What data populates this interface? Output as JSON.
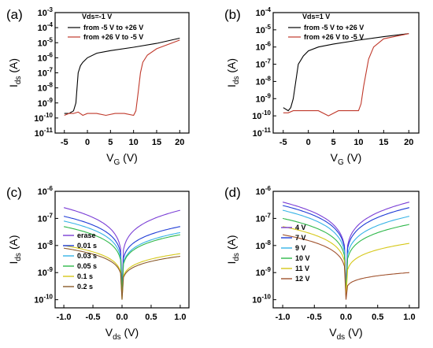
{
  "chart_data": [
    {
      "panel_label": "(a)",
      "type": "line",
      "x_ticks": [
        "-5",
        "0",
        "5",
        "10",
        "15",
        "20"
      ],
      "y_ticks": [
        "10",
        "10",
        "10",
        "10",
        "10",
        "10",
        "10",
        "10",
        "10"
      ],
      "y_tick_exps": [
        "-11",
        "-10",
        "-9",
        "-8",
        "-7",
        "-6",
        "-5",
        "-4",
        "-3"
      ],
      "xlabel": "V",
      "xlabel_sub": "G",
      "xlabel_unit": " (V)",
      "ylabel": "I",
      "ylabel_sub": "ds",
      "ylabel_unit": " (A)",
      "xlim": [
        -7,
        22
      ],
      "ylog": true,
      "ylim": [
        1e-11,
        0.001
      ],
      "legend_title": "Vds=-1 V",
      "legend": [
        "from -5 V to +26 V",
        "from +26 V to -5 V"
      ],
      "series": [
        {
          "name": "from -5 V to +26 V",
          "color": "#000000",
          "x": [
            -5,
            -4,
            -3,
            -2.5,
            -2,
            -1.5,
            -1,
            0,
            2,
            5,
            10,
            15,
            20
          ],
          "y": [
            2e-10,
            2e-10,
            3e-10,
            1e-09,
            1e-07,
            3e-07,
            5e-07,
            1e-06,
            2e-06,
            3e-06,
            5e-06,
            9e-06,
            2e-05
          ]
        },
        {
          "name": "from +26 V to -5 V",
          "color": "#c0392b",
          "x": [
            -5,
            -4,
            -3,
            -2,
            -1,
            0,
            2,
            4,
            6,
            8,
            10,
            10.5,
            11,
            11.5,
            12,
            13,
            15,
            20
          ],
          "y": [
            1.5e-10,
            2e-10,
            2e-10,
            2.5e-10,
            1.5e-10,
            2e-10,
            2e-10,
            1.5e-10,
            2e-10,
            2e-10,
            1.5e-10,
            3e-10,
            5e-09,
            1e-07,
            5e-07,
            1.5e-06,
            4e-06,
            1.5e-05
          ]
        }
      ]
    },
    {
      "panel_label": "(b)",
      "type": "line",
      "x_ticks": [
        "-5",
        "0",
        "5",
        "10",
        "15",
        "20"
      ],
      "y_ticks": [
        "10",
        "10",
        "10",
        "10",
        "10",
        "10",
        "10",
        "10"
      ],
      "y_tick_exps": [
        "-11",
        "-10",
        "-9",
        "-8",
        "-7",
        "-6",
        "-5",
        "-4"
      ],
      "xlabel": "V",
      "xlabel_sub": "G",
      "xlabel_unit": " (V)",
      "ylabel": "I",
      "ylabel_sub": "ds",
      "ylabel_unit": " (A)",
      "xlim": [
        -7,
        22
      ],
      "ylog": true,
      "ylim": [
        1e-11,
        0.0001
      ],
      "legend_title": "Vds=1 V",
      "legend": [
        "from -5 V to +26 V",
        "from +26 V to -5 V"
      ],
      "series": [
        {
          "name": "from -5 V to +26 V",
          "color": "#000000",
          "x": [
            -5,
            -4,
            -3.5,
            -3,
            -2.5,
            -2,
            -1,
            0,
            2,
            5,
            10,
            15,
            20
          ],
          "y": [
            3e-10,
            2e-10,
            3e-10,
            1e-09,
            1e-08,
            1e-07,
            3e-07,
            6e-07,
            1e-06,
            1.5e-06,
            2.5e-06,
            4e-06,
            6e-06
          ]
        },
        {
          "name": "from +26 V to -5 V",
          "color": "#c0392b",
          "x": [
            -5,
            -4,
            -3,
            -2,
            -1,
            0,
            2,
            4,
            6,
            8,
            10,
            10.5,
            11,
            12,
            13,
            15,
            20
          ],
          "y": [
            1.5e-10,
            1.5e-10,
            2e-10,
            2e-10,
            2e-10,
            2e-10,
            2e-10,
            1e-10,
            2e-10,
            2e-10,
            2e-10,
            5e-10,
            5e-09,
            2e-07,
            1e-06,
            3e-06,
            6e-06
          ]
        }
      ]
    },
    {
      "panel_label": "(c)",
      "type": "line",
      "x_ticks": [
        "-1.0",
        "-0.5",
        "0.0",
        "0.5",
        "1.0"
      ],
      "y_ticks": [
        "10",
        "10",
        "10",
        "10",
        "10"
      ],
      "y_tick_exps": [
        "-10",
        "-9",
        "-8",
        "-7",
        "-6"
      ],
      "xlabel": "V",
      "xlabel_sub": "ds",
      "xlabel_unit": " (V)",
      "ylabel": "I",
      "ylabel_sub": "ds",
      "ylabel_unit": " (A)",
      "xlim": [
        -1.15,
        1.15
      ],
      "ylog": true,
      "ylim": [
        5e-11,
        1e-06
      ],
      "legend": [
        "erase",
        "0.01 s",
        "0.03 s",
        "0.05 s",
        "0.1 s",
        "0.2 s"
      ],
      "series": [
        {
          "name": "erase",
          "color": "#7b3fd6",
          "left": 2.5e-07,
          "right": 2e-07,
          "min": 2e-10
        },
        {
          "name": "0.01 s",
          "color": "#1e3bd6",
          "left": 1.2e-07,
          "right": 5e-08,
          "min": 2e-10
        },
        {
          "name": "0.03 s",
          "color": "#36b3e6",
          "left": 8e-08,
          "right": 3e-08,
          "min": 1.5e-10
        },
        {
          "name": "0.05 s",
          "color": "#2fb84a",
          "left": 5e-08,
          "right": 2.5e-08,
          "min": 1.5e-10
        },
        {
          "name": "0.1 s",
          "color": "#d6c81a",
          "left": 1e-08,
          "right": 5e-09,
          "min": 1e-10
        },
        {
          "name": "0.2 s",
          "color": "#8a5a2b",
          "left": 8e-09,
          "right": 4e-09,
          "min": 1e-10
        }
      ]
    },
    {
      "panel_label": "(d)",
      "type": "line",
      "x_ticks": [
        "-1.0",
        "-0.5",
        "0.0",
        "0.5",
        "1.0"
      ],
      "y_ticks": [
        "10",
        "10",
        "10",
        "10",
        "10"
      ],
      "y_tick_exps": [
        "-10",
        "-9",
        "-8",
        "-7",
        "-6"
      ],
      "xlabel": "V",
      "xlabel_sub": "ds",
      "xlabel_unit": " (V)",
      "ylabel": "I",
      "ylabel_sub": "ds",
      "ylabel_unit": " (A)",
      "xlim": [
        -1.15,
        1.15
      ],
      "ylog": true,
      "ylim": [
        5e-11,
        1e-06
      ],
      "legend": [
        "4 V",
        "7 V",
        "9 V",
        "10 V",
        "11 V",
        "12 V"
      ],
      "series": [
        {
          "name": "4 V",
          "color": "#7b3fd6",
          "left": 4e-07,
          "right": 4e-07,
          "min": 2e-10
        },
        {
          "name": "7 V",
          "color": "#1e3bd6",
          "left": 3e-07,
          "right": 2.5e-07,
          "min": 2e-10
        },
        {
          "name": "9 V",
          "color": "#36b3e6",
          "left": 2e-07,
          "right": 1.2e-07,
          "min": 1.5e-10
        },
        {
          "name": "10 V",
          "color": "#2fb84a",
          "left": 1e-07,
          "right": 6e-08,
          "min": 1.5e-10
        },
        {
          "name": "11 V",
          "color": "#d6c81a",
          "left": 5e-08,
          "right": 1.2e-08,
          "min": 1.2e-10
        },
        {
          "name": "12 V",
          "color": "#a0522d",
          "left": 2.5e-08,
          "right": 1e-09,
          "min": 1e-10
        }
      ]
    }
  ]
}
